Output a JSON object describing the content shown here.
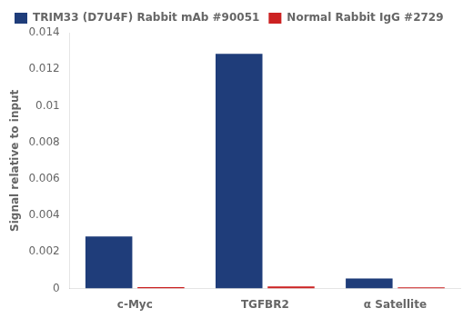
{
  "chart_data": {
    "type": "bar",
    "categories": [
      "c-Myc",
      "TGFBR2",
      "α Satellite"
    ],
    "series": [
      {
        "name": "TRIM33 (D7U4F) Rabbit mAb #90051",
        "color": "#1f3d7a",
        "values": [
          0.00285,
          0.01285,
          0.00055
        ]
      },
      {
        "name": "Normal Rabbit IgG #2729",
        "color": "#cc2222",
        "values": [
          8e-05,
          0.00012,
          7e-05
        ]
      }
    ],
    "ylabel": "Signal relative to input",
    "ylim": [
      0,
      0.014
    ],
    "yticks": [
      0,
      0.002,
      0.004,
      0.006,
      0.008,
      0.01,
      0.012,
      0.014
    ],
    "grid": false,
    "legend": "upper left"
  }
}
